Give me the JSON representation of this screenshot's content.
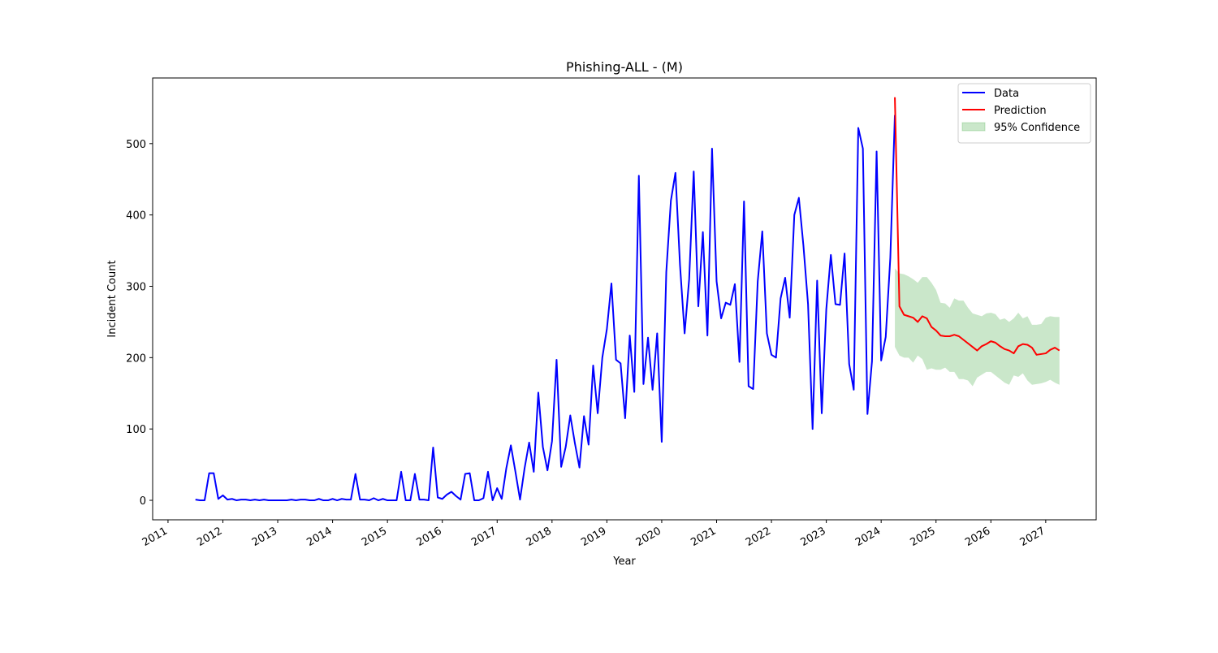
{
  "chart_data": {
    "type": "line",
    "title": "Phishing-ALL - (M)",
    "xlabel": "Year",
    "ylabel": "Incident Count",
    "xlim": [
      2010.72,
      2027.92
    ],
    "xticks": [
      2011,
      2012,
      2013,
      2014,
      2015,
      2016,
      2017,
      2018,
      2019,
      2020,
      2021,
      2022,
      2023,
      2024,
      2025,
      2026,
      2027
    ],
    "ylim": [
      -27.3,
      592
    ],
    "yticks": [
      0,
      100,
      200,
      300,
      400,
      500
    ],
    "grid": false,
    "legend": "upper right",
    "series": [
      {
        "name": "Data",
        "color": "#0000ff",
        "x": [
          2011.5,
          2011.583,
          2011.667,
          2011.75,
          2011.833,
          2011.917,
          2012,
          2012.083,
          2012.167,
          2012.25,
          2012.333,
          2012.417,
          2012.5,
          2012.583,
          2012.667,
          2012.75,
          2012.833,
          2012.917,
          2013,
          2013.083,
          2013.167,
          2013.25,
          2013.333,
          2013.417,
          2013.5,
          2013.583,
          2013.667,
          2013.75,
          2013.833,
          2013.917,
          2014,
          2014.083,
          2014.167,
          2014.25,
          2014.333,
          2014.417,
          2014.5,
          2014.583,
          2014.667,
          2014.75,
          2014.833,
          2014.917,
          2015,
          2015.083,
          2015.167,
          2015.25,
          2015.333,
          2015.417,
          2015.5,
          2015.583,
          2015.667,
          2015.75,
          2015.833,
          2015.917,
          2016,
          2016.083,
          2016.167,
          2016.25,
          2016.333,
          2016.417,
          2016.5,
          2016.583,
          2016.667,
          2016.75,
          2016.833,
          2016.917,
          2017,
          2017.083,
          2017.167,
          2017.25,
          2017.333,
          2017.417,
          2017.5,
          2017.583,
          2017.667,
          2017.75,
          2017.833,
          2017.917,
          2018,
          2018.083,
          2018.167,
          2018.25,
          2018.333,
          2018.417,
          2018.5,
          2018.583,
          2018.667,
          2018.75,
          2018.833,
          2018.917,
          2019,
          2019.083,
          2019.167,
          2019.25,
          2019.333,
          2019.417,
          2019.5,
          2019.583,
          2019.667,
          2019.75,
          2019.833,
          2019.917,
          2020,
          2020.083,
          2020.167,
          2020.25,
          2020.333,
          2020.417,
          2020.5,
          2020.583,
          2020.667,
          2020.75,
          2020.833,
          2020.917,
          2021,
          2021.083,
          2021.167,
          2021.25,
          2021.333,
          2021.417,
          2021.5,
          2021.583,
          2021.667,
          2021.75,
          2021.833,
          2021.917,
          2022,
          2022.083,
          2022.167,
          2022.25,
          2022.333,
          2022.417,
          2022.5,
          2022.583,
          2022.667,
          2022.75,
          2022.833,
          2022.917,
          2023,
          2023.083,
          2023.167,
          2023.25,
          2023.333,
          2023.417,
          2023.5,
          2023.583,
          2023.667,
          2023.75,
          2023.833,
          2023.917,
          2024,
          2024.083,
          2024.167,
          2024.25
        ],
        "values": [
          1,
          0,
          0,
          38,
          38,
          2,
          7,
          1,
          2,
          0,
          1,
          1,
          0,
          1,
          0,
          1,
          0,
          0,
          0,
          0,
          0,
          1,
          0,
          1,
          1,
          0,
          0,
          2,
          0,
          0,
          2,
          0,
          2,
          1,
          1,
          37,
          1,
          1,
          0,
          3,
          0,
          2,
          0,
          0,
          0,
          40,
          0,
          0,
          37,
          1,
          1,
          0,
          74,
          4,
          2,
          8,
          12,
          6,
          1,
          37,
          38,
          0,
          0,
          3,
          40,
          0,
          17,
          2,
          45,
          77,
          40,
          1,
          45,
          81,
          40,
          151,
          75,
          42,
          83,
          197,
          47,
          75,
          119,
          80,
          46,
          118,
          78,
          189,
          122,
          200,
          240,
          304,
          197,
          192,
          115,
          231,
          152,
          455,
          163,
          228,
          155,
          234,
          82,
          320,
          420,
          459,
          330,
          234,
          310,
          461,
          272,
          376,
          231,
          493,
          307,
          255,
          277,
          274,
          303,
          194,
          419,
          160,
          156,
          307,
          377,
          234,
          204,
          200,
          283,
          312,
          256,
          400,
          424,
          357,
          275,
          100,
          308,
          122,
          268,
          344,
          275,
          274,
          346,
          191,
          155,
          522,
          493,
          121,
          195,
          489,
          196,
          229,
          340,
          540
        ]
      },
      {
        "name": "Prediction",
        "color": "#ff0000",
        "x": [
          2024.25,
          2024.333,
          2024.417,
          2024.5,
          2024.583,
          2024.667,
          2024.75,
          2024.833,
          2024.917,
          2025,
          2025.083,
          2025.167,
          2025.25,
          2025.333,
          2025.417,
          2025.5,
          2025.583,
          2025.667,
          2025.75,
          2025.833,
          2025.917,
          2026,
          2026.083,
          2026.167,
          2026.25,
          2026.333,
          2026.417,
          2026.5,
          2026.583,
          2026.667,
          2026.75,
          2026.833,
          2026.917,
          2027,
          2027.083,
          2027.167,
          2027.25
        ],
        "values": [
          565,
          272,
          260,
          258,
          256,
          250,
          258,
          255,
          243,
          238,
          231,
          230,
          230,
          232,
          230,
          225,
          220,
          215,
          210,
          216,
          219,
          223,
          221,
          216,
          212,
          210,
          206,
          216,
          219,
          218,
          214,
          204,
          205,
          206,
          211,
          214,
          210
        ]
      }
    ],
    "band": {
      "name": "95% Confidence",
      "color": "#2ca02c",
      "upper": [
        325,
        318,
        317,
        314,
        310,
        305,
        313,
        313,
        305,
        295,
        277,
        276,
        270,
        283,
        280,
        280,
        270,
        262,
        260,
        258,
        262,
        263,
        261,
        253,
        255,
        250,
        255,
        263,
        255,
        258,
        246,
        246,
        247,
        256,
        258,
        257,
        257
      ],
      "lower": [
        215,
        203,
        200,
        200,
        193,
        203,
        198,
        183,
        185,
        183,
        183,
        186,
        180,
        180,
        170,
        170,
        168,
        160,
        172,
        176,
        180,
        180,
        175,
        170,
        165,
        162,
        175,
        173,
        178,
        168,
        162,
        163,
        164,
        166,
        169,
        165,
        162
      ]
    }
  }
}
